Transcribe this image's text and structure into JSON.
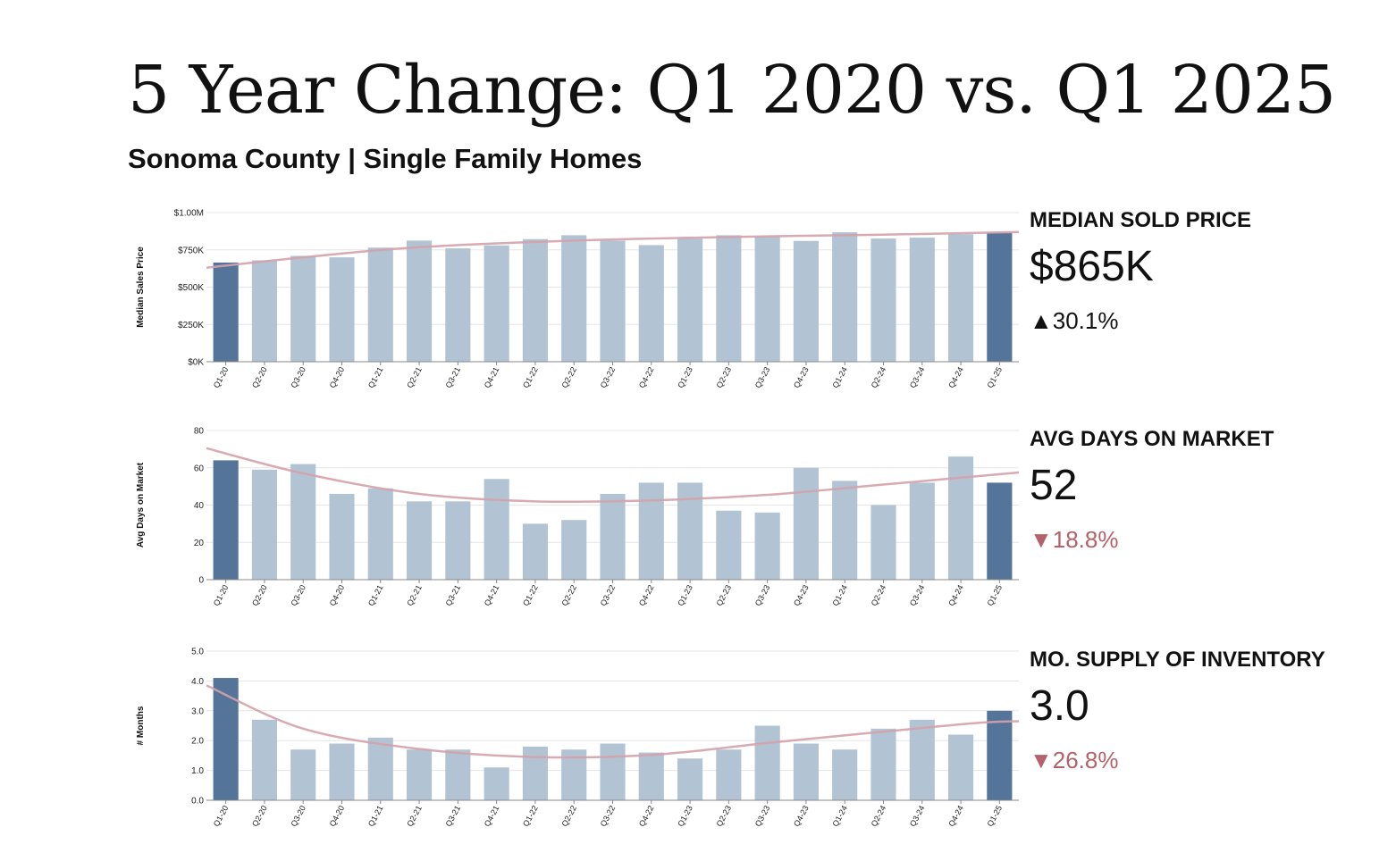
{
  "header": {
    "title": "5 Year Change: Q1 2020 vs. Q1 2025",
    "subtitle": "Sonoma County | Single Family Homes"
  },
  "colors": {
    "bar": "#b2c4d4",
    "bar_highlight": "#557499",
    "trend": "#d4a2aa",
    "grid": "#e6e6e6",
    "axis": "#888888",
    "up": "#111111",
    "down": "#b5616a"
  },
  "stats": [
    {
      "label": "MEDIAN SOLD PRICE",
      "value": "$865K",
      "change": "▲30.1%",
      "direction": "up"
    },
    {
      "label": "AVG DAYS ON MARKET",
      "value": "52",
      "change": "▼18.8%",
      "direction": "down"
    },
    {
      "label": "MO. SUPPLY OF INVENTORY",
      "value": "3.0",
      "change": "▼26.8%",
      "direction": "down"
    }
  ],
  "chart_data": [
    {
      "type": "bar",
      "ylabel": "Median Sales Price",
      "categories": [
        "Q1-20",
        "Q2-20",
        "Q3-20",
        "Q4-20",
        "Q1-21",
        "Q2-21",
        "Q3-21",
        "Q4-21",
        "Q1-22",
        "Q2-22",
        "Q3-22",
        "Q4-22",
        "Q1-23",
        "Q2-23",
        "Q3-23",
        "Q4-23",
        "Q1-24",
        "Q2-24",
        "Q3-24",
        "Q4-24",
        "Q1-25"
      ],
      "values": [
        665,
        680,
        710,
        700,
        765,
        812,
        760,
        780,
        822,
        848,
        812,
        782,
        825,
        848,
        840,
        810,
        868,
        826,
        832,
        855,
        865
      ],
      "highlight": [
        0,
        20
      ],
      "ylim": [
        0,
        1000
      ],
      "yticks": [
        0,
        250,
        500,
        750,
        1000
      ],
      "ytick_labels": [
        "$0K",
        "$250K",
        "$500K",
        "$750K",
        "$1.00M"
      ],
      "trend": [
        [
          -0.5,
          630
        ],
        [
          2,
          700
        ],
        [
          5,
          768
        ],
        [
          9,
          812
        ],
        [
          13,
          836
        ],
        [
          17,
          852
        ],
        [
          20.5,
          870
        ]
      ]
    },
    {
      "type": "bar",
      "ylabel": "Avg Days on Market",
      "categories": [
        "Q1-20",
        "Q2-20",
        "Q3-20",
        "Q4-20",
        "Q1-21",
        "Q2-21",
        "Q3-21",
        "Q4-21",
        "Q1-22",
        "Q2-22",
        "Q3-22",
        "Q4-22",
        "Q1-23",
        "Q2-23",
        "Q3-23",
        "Q4-23",
        "Q1-24",
        "Q2-24",
        "Q3-24",
        "Q4-24",
        "Q1-25"
      ],
      "values": [
        64,
        59,
        62,
        46,
        49,
        42,
        42,
        54,
        30,
        32,
        46,
        52,
        52,
        37,
        36,
        60,
        53,
        40,
        52,
        66,
        52
      ],
      "highlight": [
        0,
        20
      ],
      "ylim": [
        0,
        80
      ],
      "yticks": [
        0,
        20,
        40,
        60,
        80
      ],
      "ytick_labels": [
        "0",
        "20",
        "40",
        "60",
        "80"
      ],
      "trend": [
        [
          -0.5,
          70.5
        ],
        [
          2,
          57
        ],
        [
          5,
          46
        ],
        [
          8,
          42
        ],
        [
          11,
          42.5
        ],
        [
          14,
          45.5
        ],
        [
          17,
          51
        ],
        [
          20.5,
          57.5
        ]
      ]
    },
    {
      "type": "bar",
      "ylabel": "# Months",
      "categories": [
        "Q1-20",
        "Q2-20",
        "Q3-20",
        "Q4-20",
        "Q1-21",
        "Q2-21",
        "Q3-21",
        "Q4-21",
        "Q1-22",
        "Q2-22",
        "Q3-22",
        "Q4-22",
        "Q1-23",
        "Q2-23",
        "Q3-23",
        "Q4-23",
        "Q1-24",
        "Q2-24",
        "Q3-24",
        "Q4-24",
        "Q1-25"
      ],
      "values": [
        4.1,
        2.7,
        1.7,
        1.9,
        2.1,
        1.7,
        1.7,
        1.1,
        1.8,
        1.7,
        1.9,
        1.6,
        1.4,
        1.7,
        2.5,
        1.9,
        1.7,
        2.4,
        2.7,
        2.2,
        3.0
      ],
      "highlight": [
        0,
        20
      ],
      "ylim": [
        0,
        5
      ],
      "yticks": [
        0,
        1,
        2,
        3,
        4,
        5
      ],
      "ytick_labels": [
        "0.0",
        "1.0",
        "2.0",
        "3.0",
        "4.0",
        "5.0"
      ],
      "trend": [
        [
          -0.5,
          3.85
        ],
        [
          2,
          2.4
        ],
        [
          5,
          1.72
        ],
        [
          8,
          1.45
        ],
        [
          11,
          1.52
        ],
        [
          14,
          1.92
        ],
        [
          17,
          2.3
        ],
        [
          19.5,
          2.6
        ],
        [
          20.5,
          2.65
        ]
      ]
    }
  ]
}
